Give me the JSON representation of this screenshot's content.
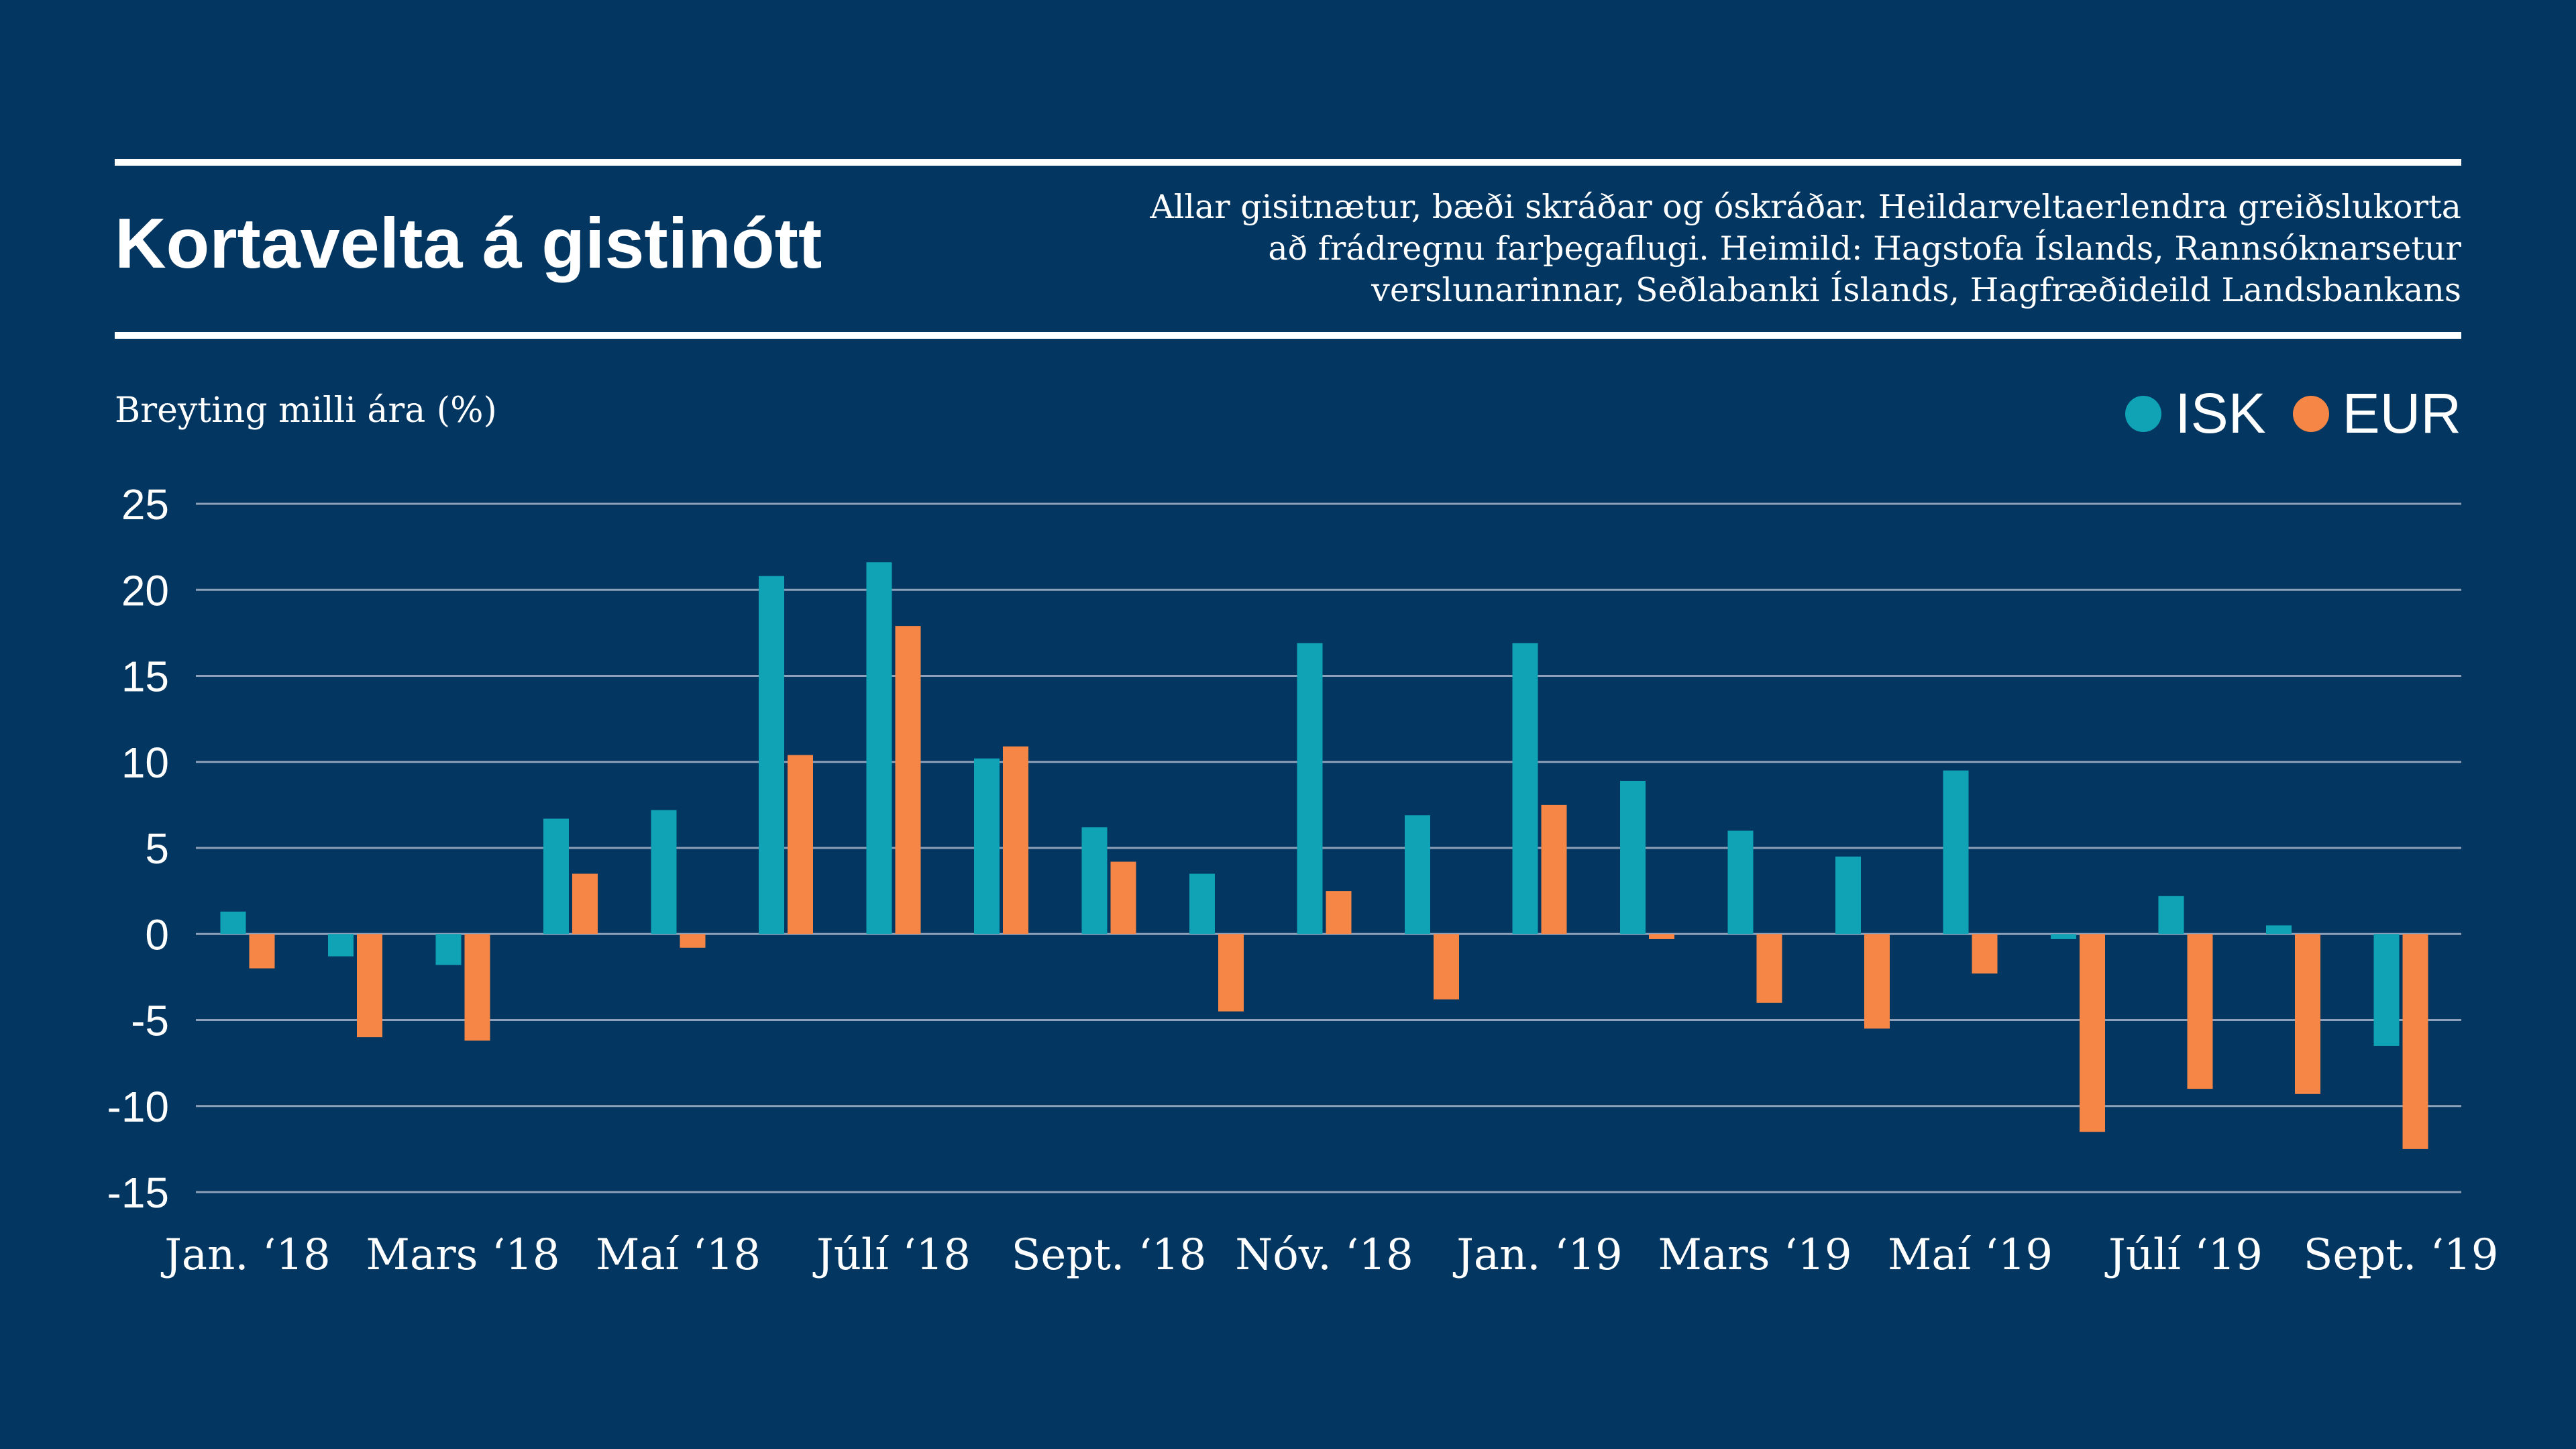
{
  "title": "Kortavelta á gistinótt",
  "note_lines": [
    "Allar gisitnætur, bæði skráðar og óskráðar. Heildarveltaerlendra greiðslukorta",
    "að frádregnu farþegaflugi.  Heimild: Hagstofa Íslands, Rannsóknarsetur",
    "verslunarinnar, Seðlabanki Íslands, Hagfræðideild Landsbankans"
  ],
  "colors": {
    "background": "#033761",
    "text": "#ffffff",
    "gridline": "#8e9fb8",
    "isk": "#0fa3b5",
    "eur": "#f58645"
  },
  "chart_data": {
    "type": "bar",
    "ylabel": "Breyting milli ára (%)",
    "ylim": [
      -15,
      25
    ],
    "yticks": [
      25,
      20,
      15,
      10,
      5,
      0,
      -5,
      -10,
      -15
    ],
    "grid": true,
    "legend_position": "top-right",
    "x_tick_labels": [
      {
        "label": "Jan. ‘18",
        "index": 0
      },
      {
        "label": "Mars ‘18",
        "index": 2
      },
      {
        "label": "Maí ‘18",
        "index": 4
      },
      {
        "label": "Júlí ‘18",
        "index": 6
      },
      {
        "label": "Sept. ‘18",
        "index": 8
      },
      {
        "label": "Nóv. ‘18",
        "index": 10
      },
      {
        "label": "Jan. ‘19",
        "index": 12
      },
      {
        "label": "Mars ‘19",
        "index": 14
      },
      {
        "label": "Maí ‘19",
        "index": 16
      },
      {
        "label": "Júlí ‘19",
        "index": 18
      },
      {
        "label": "Sept. ‘19",
        "index": 20
      }
    ],
    "series": [
      {
        "name": "ISK",
        "values": [
          1.3,
          -1.3,
          -1.8,
          6.7,
          7.2,
          20.8,
          21.6,
          10.2,
          6.2,
          3.5,
          16.9,
          6.9,
          16.9,
          8.9,
          6.0,
          4.5,
          9.5,
          -0.3,
          2.2,
          0.5,
          -6.5
        ]
      },
      {
        "name": "EUR",
        "values": [
          -2.0,
          -6.0,
          -6.2,
          3.5,
          -0.8,
          10.4,
          17.9,
          10.9,
          4.2,
          -4.5,
          2.5,
          -3.8,
          7.5,
          -0.3,
          -4.0,
          -5.5,
          -2.3,
          -11.5,
          -9.0,
          -9.3,
          -12.5
        ]
      }
    ]
  }
}
